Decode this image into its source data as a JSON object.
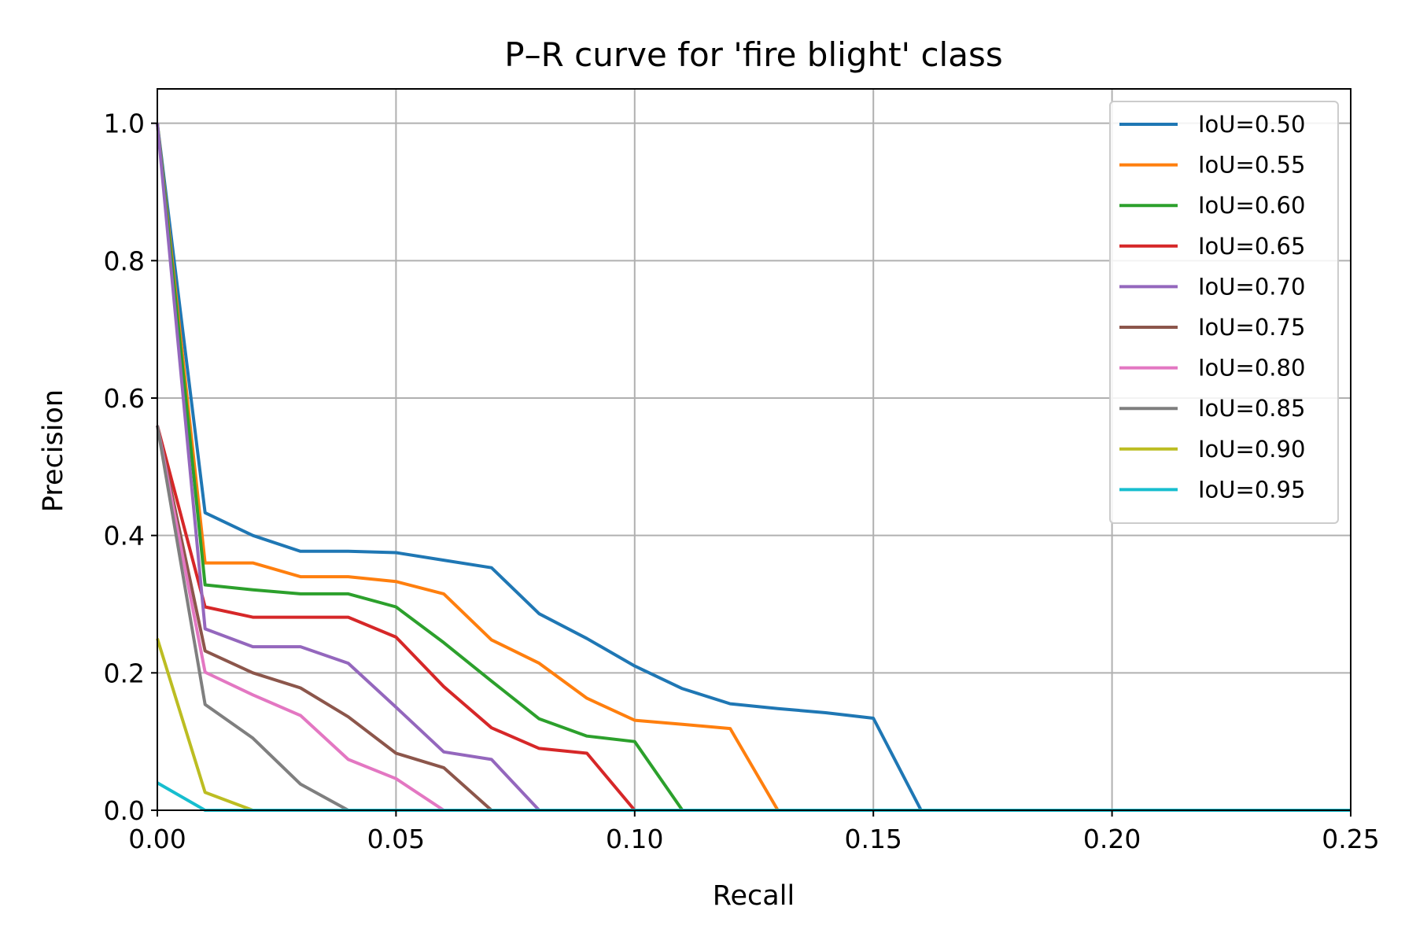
{
  "chart_data": {
    "type": "line",
    "title": "P–R curve for 'fire blight' class",
    "xlabel": "Recall",
    "ylabel": "Precision",
    "xlim": [
      0.0,
      0.25
    ],
    "ylim": [
      0.0,
      1.05
    ],
    "xticks": [
      "0.00",
      "0.05",
      "0.10",
      "0.15",
      "0.20",
      "0.25"
    ],
    "yticks": [
      "0.0",
      "0.2",
      "0.4",
      "0.6",
      "0.8",
      "1.0"
    ],
    "grid": true,
    "legend_position": "top-right",
    "series": [
      {
        "name": "IoU=0.50",
        "color": "#1f77b4",
        "points": [
          [
            0.0,
            1.0
          ],
          [
            0.01,
            0.433
          ],
          [
            0.02,
            0.4
          ],
          [
            0.03,
            0.377
          ],
          [
            0.04,
            0.377
          ],
          [
            0.05,
            0.375
          ],
          [
            0.06,
            0.364
          ],
          [
            0.07,
            0.353
          ],
          [
            0.08,
            0.286
          ],
          [
            0.09,
            0.25
          ],
          [
            0.1,
            0.21
          ],
          [
            0.11,
            0.177
          ],
          [
            0.12,
            0.155
          ],
          [
            0.13,
            0.148
          ],
          [
            0.14,
            0.142
          ],
          [
            0.15,
            0.134
          ],
          [
            0.16,
            0.0
          ],
          [
            0.25,
            0.0
          ]
        ]
      },
      {
        "name": "IoU=0.55",
        "color": "#ff7f0e",
        "points": [
          [
            0.0,
            1.0
          ],
          [
            0.01,
            0.36
          ],
          [
            0.02,
            0.36
          ],
          [
            0.03,
            0.34
          ],
          [
            0.04,
            0.34
          ],
          [
            0.05,
            0.333
          ],
          [
            0.06,
            0.315
          ],
          [
            0.07,
            0.248
          ],
          [
            0.08,
            0.214
          ],
          [
            0.09,
            0.163
          ],
          [
            0.1,
            0.131
          ],
          [
            0.11,
            0.125
          ],
          [
            0.12,
            0.119
          ],
          [
            0.13,
            0.0
          ],
          [
            0.25,
            0.0
          ]
        ]
      },
      {
        "name": "IoU=0.60",
        "color": "#2ca02c",
        "points": [
          [
            0.0,
            1.0
          ],
          [
            0.01,
            0.328
          ],
          [
            0.02,
            0.321
          ],
          [
            0.03,
            0.315
          ],
          [
            0.04,
            0.315
          ],
          [
            0.05,
            0.296
          ],
          [
            0.06,
            0.244
          ],
          [
            0.07,
            0.188
          ],
          [
            0.08,
            0.133
          ],
          [
            0.09,
            0.108
          ],
          [
            0.1,
            0.1
          ],
          [
            0.11,
            0.0
          ],
          [
            0.25,
            0.0
          ]
        ]
      },
      {
        "name": "IoU=0.65",
        "color": "#d62728",
        "points": [
          [
            0.0,
            0.56
          ],
          [
            0.01,
            0.296
          ],
          [
            0.02,
            0.281
          ],
          [
            0.03,
            0.281
          ],
          [
            0.04,
            0.281
          ],
          [
            0.05,
            0.252
          ],
          [
            0.06,
            0.18
          ],
          [
            0.07,
            0.12
          ],
          [
            0.08,
            0.09
          ],
          [
            0.09,
            0.083
          ],
          [
            0.1,
            0.0
          ],
          [
            0.25,
            0.0
          ]
        ]
      },
      {
        "name": "IoU=0.70",
        "color": "#9467bd",
        "points": [
          [
            0.0,
            1.0
          ],
          [
            0.01,
            0.264
          ],
          [
            0.02,
            0.238
          ],
          [
            0.03,
            0.238
          ],
          [
            0.04,
            0.214
          ],
          [
            0.05,
            0.15
          ],
          [
            0.06,
            0.085
          ],
          [
            0.07,
            0.074
          ],
          [
            0.08,
            0.0
          ],
          [
            0.25,
            0.0
          ]
        ]
      },
      {
        "name": "IoU=0.75",
        "color": "#8c564b",
        "points": [
          [
            0.0,
            0.56
          ],
          [
            0.01,
            0.232
          ],
          [
            0.02,
            0.2
          ],
          [
            0.03,
            0.178
          ],
          [
            0.04,
            0.136
          ],
          [
            0.05,
            0.083
          ],
          [
            0.06,
            0.062
          ],
          [
            0.07,
            0.0
          ],
          [
            0.25,
            0.0
          ]
        ]
      },
      {
        "name": "IoU=0.80",
        "color": "#e377c2",
        "points": [
          [
            0.0,
            0.56
          ],
          [
            0.01,
            0.201
          ],
          [
            0.02,
            0.168
          ],
          [
            0.03,
            0.138
          ],
          [
            0.04,
            0.074
          ],
          [
            0.05,
            0.046
          ],
          [
            0.06,
            0.0
          ],
          [
            0.25,
            0.0
          ]
        ]
      },
      {
        "name": "IoU=0.85",
        "color": "#7f7f7f",
        "points": [
          [
            0.0,
            0.56
          ],
          [
            0.01,
            0.154
          ],
          [
            0.02,
            0.105
          ],
          [
            0.03,
            0.038
          ],
          [
            0.04,
            0.0
          ],
          [
            0.25,
            0.0
          ]
        ]
      },
      {
        "name": "IoU=0.90",
        "color": "#bcbd22",
        "points": [
          [
            0.0,
            0.25
          ],
          [
            0.01,
            0.026
          ],
          [
            0.02,
            0.0
          ],
          [
            0.25,
            0.0
          ]
        ]
      },
      {
        "name": "IoU=0.95",
        "color": "#17becf",
        "points": [
          [
            0.0,
            0.04
          ],
          [
            0.01,
            0.0
          ],
          [
            0.25,
            0.0
          ]
        ]
      }
    ]
  }
}
